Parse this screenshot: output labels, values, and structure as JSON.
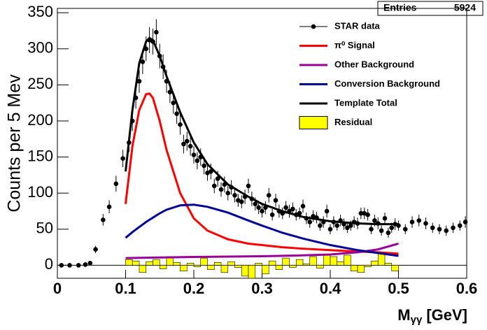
{
  "chart_data": {
    "type": "scatter",
    "ylabel": "Counts per 5 Mev",
    "xlabel": "M",
    "xlabel_sub": "γγ",
    "xlabel_unit": "[GeV]",
    "stats_label": "Entries",
    "entries": 5924,
    "xlim": [
      0,
      0.6
    ],
    "ylim": [
      -18,
      356
    ],
    "xticks": [
      0,
      0.1,
      0.2,
      0.3,
      0.4,
      0.5,
      0.6
    ],
    "yticks": [
      0,
      50,
      100,
      150,
      200,
      250,
      300,
      350
    ],
    "series": [
      {
        "name": "STAR data",
        "color": "#000000",
        "type": "scatter",
        "x": [
          0.006,
          0.018,
          0.031,
          0.041,
          0.048,
          0.056,
          0.067,
          0.076,
          0.086,
          0.096,
          0.105,
          0.11,
          0.115,
          0.12,
          0.125,
          0.13,
          0.135,
          0.14,
          0.145,
          0.15,
          0.155,
          0.16,
          0.165,
          0.17,
          0.175,
          0.18,
          0.185,
          0.19,
          0.195,
          0.2,
          0.205,
          0.21,
          0.215,
          0.22,
          0.225,
          0.23,
          0.235,
          0.24,
          0.245,
          0.25,
          0.255,
          0.26,
          0.265,
          0.27,
          0.275,
          0.28,
          0.285,
          0.29,
          0.295,
          0.3,
          0.305,
          0.31,
          0.315,
          0.32,
          0.325,
          0.33,
          0.335,
          0.34,
          0.345,
          0.35,
          0.355,
          0.36,
          0.365,
          0.37,
          0.375,
          0.38,
          0.385,
          0.39,
          0.395,
          0.4,
          0.405,
          0.41,
          0.415,
          0.42,
          0.425,
          0.43,
          0.435,
          0.44,
          0.445,
          0.45,
          0.455,
          0.46,
          0.465,
          0.47,
          0.475,
          0.48,
          0.485,
          0.49,
          0.495,
          0.5,
          0.51,
          0.52,
          0.53,
          0.54,
          0.55,
          0.56,
          0.57,
          0.58,
          0.59,
          0.598
        ],
        "values": [
          0,
          0,
          0,
          1,
          3,
          22,
          63,
          81,
          113,
          148,
          170,
          200,
          232,
          255,
          282,
          300,
          312,
          310,
          323,
          290,
          275,
          255,
          240,
          225,
          210,
          195,
          168,
          172,
          165,
          153,
          145,
          150,
          138,
          128,
          130,
          110,
          120,
          105,
          112,
          100,
          108,
          97,
          90,
          88,
          95,
          110,
          92,
          85,
          80,
          75,
          80,
          97,
          70,
          90,
          75,
          72,
          80,
          75,
          78,
          70,
          72,
          82,
          65,
          60,
          68,
          66,
          55,
          60,
          75,
          50,
          60,
          55,
          62,
          57,
          52,
          55,
          60,
          58,
          72,
          72,
          70,
          50,
          62,
          58,
          48,
          65,
          45,
          52,
          57,
          55,
          50,
          60,
          62,
          58,
          52,
          50,
          48,
          52,
          55,
          60
        ],
        "errors": [
          0,
          0,
          0,
          1,
          2,
          5,
          8,
          9,
          11,
          12,
          13,
          14,
          15,
          16,
          17,
          17,
          18,
          18,
          18,
          17,
          17,
          16,
          15,
          15,
          14,
          14,
          13,
          13,
          13,
          12,
          12,
          12,
          12,
          11,
          11,
          10,
          11,
          10,
          11,
          10,
          10,
          10,
          9,
          9,
          10,
          10,
          10,
          9,
          9,
          9,
          9,
          10,
          8,
          9,
          9,
          8,
          9,
          9,
          9,
          8,
          8,
          9,
          8,
          8,
          8,
          8,
          7,
          8,
          9,
          7,
          8,
          7,
          8,
          8,
          7,
          7,
          8,
          8,
          8,
          8,
          8,
          7,
          8,
          8,
          7,
          8,
          7,
          7,
          8,
          7,
          7,
          8,
          8,
          8,
          7,
          7,
          7,
          7,
          7,
          8
        ]
      },
      {
        "name": "π⁰ Signal",
        "color": "#ff0000",
        "type": "line",
        "x": [
          0.1,
          0.11,
          0.12,
          0.13,
          0.135,
          0.14,
          0.15,
          0.16,
          0.18,
          0.2,
          0.22,
          0.25,
          0.28,
          0.3,
          0.33,
          0.36,
          0.4,
          0.44,
          0.47,
          0.5
        ],
        "values": [
          85,
          165,
          215,
          237,
          238,
          232,
          200,
          160,
          100,
          65,
          48,
          36,
          30,
          28,
          25,
          23,
          21,
          19,
          18,
          16
        ]
      },
      {
        "name": "Other Background",
        "color": "#990099",
        "type": "line",
        "x": [
          0.1,
          0.13,
          0.16,
          0.2,
          0.25,
          0.3,
          0.35,
          0.4,
          0.44,
          0.47,
          0.5
        ],
        "values": [
          10,
          10.5,
          11,
          11.5,
          12,
          12.5,
          13.5,
          15,
          18,
          22,
          30
        ]
      },
      {
        "name": "Conversion Background",
        "color": "#000099",
        "type": "line",
        "x": [
          0.1,
          0.11,
          0.12,
          0.13,
          0.135,
          0.14,
          0.15,
          0.16,
          0.18,
          0.2,
          0.22,
          0.25,
          0.28,
          0.3,
          0.33,
          0.36,
          0.4,
          0.44,
          0.47,
          0.5
        ],
        "values": [
          38,
          46,
          53,
          60,
          63,
          66,
          72,
          77,
          83,
          84,
          81,
          73,
          62,
          55,
          45,
          37,
          28,
          21,
          17,
          13
        ]
      },
      {
        "name": "Template Total",
        "color": "#000000",
        "type": "line",
        "x": [
          0.1,
          0.11,
          0.12,
          0.13,
          0.135,
          0.14,
          0.15,
          0.16,
          0.18,
          0.2,
          0.22,
          0.25,
          0.28,
          0.3,
          0.33,
          0.36,
          0.4,
          0.44,
          0.47,
          0.5
        ],
        "values": [
          130,
          215,
          280,
          310,
          315,
          312,
          290,
          262,
          212,
          170,
          140,
          112,
          95,
          85,
          75,
          67,
          61,
          58,
          57,
          57
        ]
      },
      {
        "name": "Residual",
        "color": "#ffff00",
        "type": "histogram",
        "bins": [
          0.1,
          0.11,
          0.12,
          0.13,
          0.14,
          0.15,
          0.16,
          0.17,
          0.18,
          0.19,
          0.2,
          0.21,
          0.22,
          0.23,
          0.24,
          0.25,
          0.26,
          0.27,
          0.28,
          0.29,
          0.3,
          0.31,
          0.32,
          0.33,
          0.34,
          0.35,
          0.36,
          0.37,
          0.38,
          0.39,
          0.4,
          0.41,
          0.42,
          0.43,
          0.44,
          0.45,
          0.46,
          0.47,
          0.48,
          0.49,
          0.5
        ],
        "values": [
          8,
          6,
          -10,
          5,
          8,
          -5,
          12,
          4,
          -8,
          3,
          -2,
          10,
          -6,
          4,
          -10,
          5,
          -3,
          -15,
          -18,
          3,
          -12,
          6,
          -6,
          10,
          -3,
          8,
          2,
          12,
          -4,
          15,
          12,
          5,
          14,
          -8,
          -10,
          -2,
          6,
          17,
          3,
          -8
        ]
      }
    ]
  }
}
